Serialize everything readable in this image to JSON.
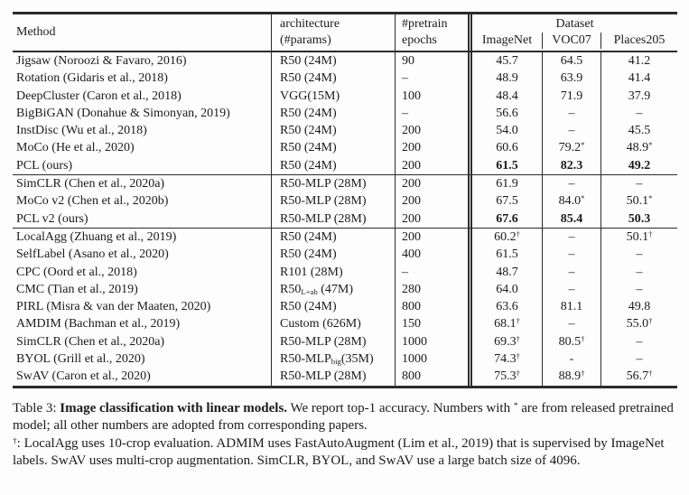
{
  "table": {
    "header": {
      "method": "Method",
      "architecture": [
        "architecture",
        "(#params)"
      ],
      "pretrain": [
        "#pretrain",
        "epochs"
      ],
      "dataset_label": "Dataset",
      "dataset_columns": [
        "ImageNet",
        "VOC07",
        "Places205"
      ]
    },
    "groups": [
      {
        "rows": [
          {
            "method": "Jigsaw (Noroozi & Favaro, 2016)",
            "arch": [
              "R50 (24M)",
              "",
              ""
            ],
            "epochs": "90",
            "scores": [
              {
                "v": "45.7",
                "s": ""
              },
              {
                "v": "64.5",
                "s": ""
              },
              {
                "v": "41.2",
                "s": ""
              }
            ],
            "bold": false
          },
          {
            "method": "Rotation (Gidaris et al., 2018)",
            "arch": [
              "R50 (24M)",
              "",
              ""
            ],
            "epochs": "–",
            "scores": [
              {
                "v": "48.9",
                "s": ""
              },
              {
                "v": "63.9",
                "s": ""
              },
              {
                "v": "41.4",
                "s": ""
              }
            ],
            "bold": false
          },
          {
            "method": "DeepCluster (Caron et al., 2018)",
            "arch": [
              "VGG(15M)",
              "",
              ""
            ],
            "epochs": "100",
            "scores": [
              {
                "v": "48.4",
                "s": ""
              },
              {
                "v": "71.9",
                "s": ""
              },
              {
                "v": "37.9",
                "s": ""
              }
            ],
            "bold": false
          },
          {
            "method": "BigBiGAN (Donahue & Simonyan, 2019)",
            "arch": [
              "R50 (24M)",
              "",
              ""
            ],
            "epochs": "–",
            "scores": [
              {
                "v": "56.6",
                "s": ""
              },
              {
                "v": "–",
                "s": ""
              },
              {
                "v": "–",
                "s": ""
              }
            ],
            "bold": false
          },
          {
            "method": "InstDisc (Wu et al., 2018)",
            "arch": [
              "R50 (24M)",
              "",
              ""
            ],
            "epochs": "200",
            "scores": [
              {
                "v": "54.0",
                "s": ""
              },
              {
                "v": "–",
                "s": ""
              },
              {
                "v": "45.5",
                "s": ""
              }
            ],
            "bold": false
          },
          {
            "method": "MoCo (He et al., 2020)",
            "arch": [
              "R50 (24M)",
              "",
              ""
            ],
            "epochs": "200",
            "scores": [
              {
                "v": "60.6",
                "s": ""
              },
              {
                "v": "79.2",
                "s": "*"
              },
              {
                "v": "48.9",
                "s": "*"
              }
            ],
            "bold": false
          },
          {
            "method": "PCL (ours)",
            "arch": [
              "R50 (24M)",
              "",
              ""
            ],
            "epochs": "200",
            "scores": [
              {
                "v": "61.5",
                "s": ""
              },
              {
                "v": "82.3",
                "s": ""
              },
              {
                "v": "49.2",
                "s": ""
              }
            ],
            "bold": true
          }
        ]
      },
      {
        "rows": [
          {
            "method": "SimCLR (Chen et al., 2020a)",
            "arch": [
              "R50-MLP (28M)",
              "",
              ""
            ],
            "epochs": "200",
            "scores": [
              {
                "v": "61.9",
                "s": ""
              },
              {
                "v": "–",
                "s": ""
              },
              {
                "v": "–",
                "s": ""
              }
            ],
            "bold": false
          },
          {
            "method": "MoCo v2 (Chen et al., 2020b)",
            "arch": [
              "R50-MLP (28M)",
              "",
              ""
            ],
            "epochs": "200",
            "scores": [
              {
                "v": "67.5",
                "s": ""
              },
              {
                "v": "84.0",
                "s": "*"
              },
              {
                "v": "50.1",
                "s": "*"
              }
            ],
            "bold": false
          },
          {
            "method": "PCL v2 (ours)",
            "arch": [
              "R50-MLP (28M)",
              "",
              ""
            ],
            "epochs": "200",
            "scores": [
              {
                "v": "67.6",
                "s": ""
              },
              {
                "v": "85.4",
                "s": ""
              },
              {
                "v": "50.3",
                "s": ""
              }
            ],
            "bold": true
          }
        ]
      },
      {
        "rows": [
          {
            "method": "LocalAgg (Zhuang et al., 2019)",
            "arch": [
              "R50 (24M)",
              "",
              ""
            ],
            "epochs": "200",
            "scores": [
              {
                "v": "60.2",
                "s": "†"
              },
              {
                "v": "–",
                "s": ""
              },
              {
                "v": "50.1",
                "s": "†"
              }
            ],
            "bold": false
          },
          {
            "method": "SelfLabel (Asano et al., 2020)",
            "arch": [
              "R50 (24M)",
              "",
              ""
            ],
            "epochs": "400",
            "scores": [
              {
                "v": "61.5",
                "s": ""
              },
              {
                "v": "–",
                "s": ""
              },
              {
                "v": "–",
                "s": ""
              }
            ],
            "bold": false
          },
          {
            "method": "CPC (Oord et al., 2018)",
            "arch": [
              "R101 (28M)",
              "",
              ""
            ],
            "epochs": "–",
            "scores": [
              {
                "v": "48.7",
                "s": ""
              },
              {
                "v": "–",
                "s": ""
              },
              {
                "v": "–",
                "s": ""
              }
            ],
            "bold": false
          },
          {
            "method": "CMC (Tian et al., 2019)",
            "arch": [
              "R50",
              "L+ab",
              " (47M)"
            ],
            "epochs": "280",
            "scores": [
              {
                "v": "64.0",
                "s": ""
              },
              {
                "v": "–",
                "s": ""
              },
              {
                "v": "–",
                "s": ""
              }
            ],
            "bold": false
          },
          {
            "method": "PIRL (Misra & van der Maaten, 2020)",
            "arch": [
              "R50 (24M)",
              "",
              ""
            ],
            "epochs": "800",
            "scores": [
              {
                "v": "63.6",
                "s": ""
              },
              {
                "v": "81.1",
                "s": ""
              },
              {
                "v": "49.8",
                "s": ""
              }
            ],
            "bold": false
          },
          {
            "method": "AMDIM (Bachman et al., 2019)",
            "arch": [
              "Custom (626M)",
              "",
              ""
            ],
            "epochs": "150",
            "scores": [
              {
                "v": "68.1",
                "s": "†"
              },
              {
                "v": "–",
                "s": ""
              },
              {
                "v": "55.0",
                "s": "†"
              }
            ],
            "bold": false
          },
          {
            "method": "SimCLR (Chen et al., 2020a)",
            "arch": [
              "R50-MLP (28M)",
              "",
              ""
            ],
            "epochs": "1000",
            "scores": [
              {
                "v": "69.3",
                "s": "†"
              },
              {
                "v": "80.5",
                "s": "†"
              },
              {
                "v": "–",
                "s": ""
              }
            ],
            "bold": false
          },
          {
            "method": "BYOL (Grill et al., 2020)",
            "arch": [
              "R50-MLP",
              "big",
              "(35M)"
            ],
            "epochs": "1000",
            "scores": [
              {
                "v": "74.3",
                "s": "†"
              },
              {
                "v": "-",
                "s": ""
              },
              {
                "v": "–",
                "s": ""
              }
            ],
            "bold": false
          },
          {
            "method": "SwAV (Caron et al., 2020)",
            "arch": [
              "R50-MLP (28M)",
              "",
              ""
            ],
            "epochs": "800",
            "scores": [
              {
                "v": "75.3",
                "s": "†"
              },
              {
                "v": "88.9",
                "s": "†"
              },
              {
                "v": "56.7",
                "s": "†"
              }
            ],
            "bold": false
          }
        ]
      }
    ]
  },
  "caption": {
    "prefix": "Table 3: ",
    "bold": "Image classification with linear models.",
    "body1": " We report top-1 accuracy. Numbers with ",
    "star": "*",
    "body2": " are from released pretrained model; all other numbers are adopted from corresponding papers."
  },
  "footnote": {
    "dagger": "†",
    "text": ": LocalAgg uses 10-crop evaluation. ADMIM uses FastAutoAugment (Lim et al., 2019) that is supervised by ImageNet labels. SwAV uses multi-crop augmentation. SimCLR, BYOL, and SwAV use a large batch size of 4096."
  },
  "colors": {
    "text": "#1b1b1b",
    "rule": "#2b2b2b",
    "background": "#fdfdfd"
  }
}
